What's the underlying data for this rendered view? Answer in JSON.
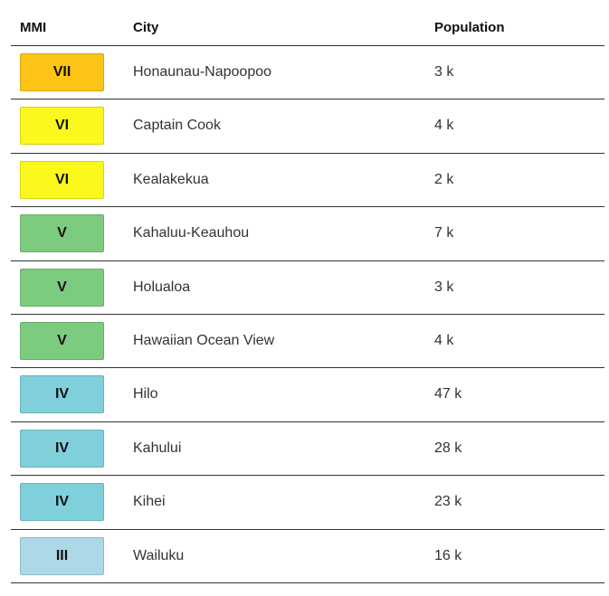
{
  "table": {
    "header": [
      "MMI",
      "City",
      "Population"
    ],
    "rows": [
      {
        "mmi": "VII",
        "city": "Honaunau-Napoopoo",
        "population": "3 k",
        "color": "#fcc416"
      },
      {
        "mmi": "VI",
        "city": "Captain Cook",
        "population": "4 k",
        "color": "#fbf81c"
      },
      {
        "mmi": "VI",
        "city": "Kealakekua",
        "population": "2 k",
        "color": "#fbf81c"
      },
      {
        "mmi": "V",
        "city": "Kahaluu-Keauhou",
        "population": "7 k",
        "color": "#7dcb7f"
      },
      {
        "mmi": "V",
        "city": "Holualoa",
        "population": "3 k",
        "color": "#7dcb7f"
      },
      {
        "mmi": "V",
        "city": "Hawaiian Ocean View",
        "population": "4 k",
        "color": "#7dcb7f"
      },
      {
        "mmi": "IV",
        "city": "Hilo",
        "population": "47 k",
        "color": "#80d0dc"
      },
      {
        "mmi": "IV",
        "city": "Kahului",
        "population": "28 k",
        "color": "#80d0dc"
      },
      {
        "mmi": "IV",
        "city": "Kihei",
        "population": "23 k",
        "color": "#80d0dc"
      },
      {
        "mmi": "III",
        "city": "Wailuku",
        "population": "16 k",
        "color": "#add8e8"
      }
    ]
  }
}
